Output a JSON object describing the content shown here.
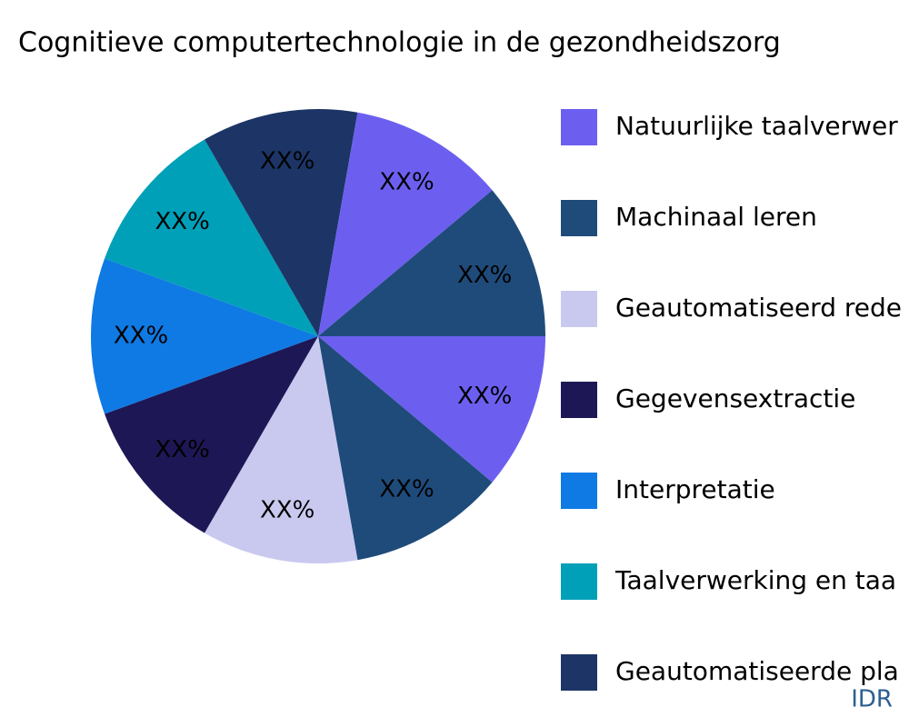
{
  "chart_data": {
    "type": "pie",
    "title": "Cognitieve computertechnologie in de gezondheidszorg",
    "categories": [
      "Natuurlijke taalverwer",
      "Machinaal leren",
      "Geautomatiseerd rede",
      "Gegevensextractie",
      "Interpretatie",
      "Taalverwerking en taa",
      "Geautomatiseerde pla",
      null,
      null
    ],
    "values": [
      11.1,
      11.1,
      11.1,
      11.1,
      11.1,
      11.1,
      11.1,
      11.1,
      11.1
    ],
    "value_labels": [
      "XX%",
      "XX%",
      "XX%",
      "XX%",
      "XX%",
      "XX%",
      "XX%",
      "XX%",
      "XX%"
    ],
    "colors": [
      "#6c5ff0",
      "#1f4b7b",
      "#c9c9f0",
      "#1e1756",
      "#0f7ae3",
      "#00a0b8",
      "#1c3566",
      "#6c5ff0",
      "#1f4b7b"
    ],
    "legend": "right",
    "source": "IDR"
  }
}
